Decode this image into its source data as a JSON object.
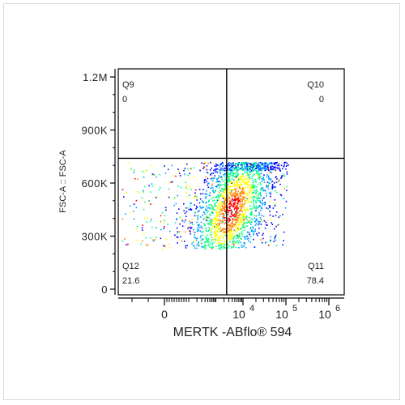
{
  "chart_data": {
    "type": "scatter",
    "title": "",
    "xlabel": "MERTK -ABflo® 594",
    "ylabel": "FSC-A :: FSC-A",
    "x_scale": "biexponential",
    "y_scale": "linear",
    "ylim": [
      0,
      1200000
    ],
    "y_ticks": [
      {
        "value": 0,
        "label": "0"
      },
      {
        "value": 300000,
        "label": "300K"
      },
      {
        "value": 600000,
        "label": "600K"
      },
      {
        "value": 900000,
        "label": "900K"
      },
      {
        "value": 1200000,
        "label": "1.2M"
      }
    ],
    "x_ticks": [
      {
        "value": 0,
        "base": "0",
        "exp": ""
      },
      {
        "value": 10000,
        "base": "10",
        "exp": "4"
      },
      {
        "value": 100000,
        "base": "10",
        "exp": "5"
      },
      {
        "value": 1000000,
        "base": "10",
        "exp": "6"
      }
    ],
    "quadrant_gates": {
      "x": 2500,
      "y": 740000
    },
    "quadrants": [
      {
        "name": "Q9",
        "value": "0",
        "position": "top-left"
      },
      {
        "name": "Q10",
        "value": "0",
        "position": "top-right"
      },
      {
        "name": "Q12",
        "value": "21.6",
        "position": "bottom-left"
      },
      {
        "name": "Q11",
        "value": "78.4",
        "position": "bottom-right"
      }
    ],
    "population": {
      "center": {
        "x": 3000,
        "y": 480000
      },
      "density_colormap": [
        "#0000ff",
        "#00a0ff",
        "#00ff80",
        "#ffff00",
        "#ff8000",
        "#ff0000"
      ]
    },
    "grid": false,
    "legend": "none"
  }
}
